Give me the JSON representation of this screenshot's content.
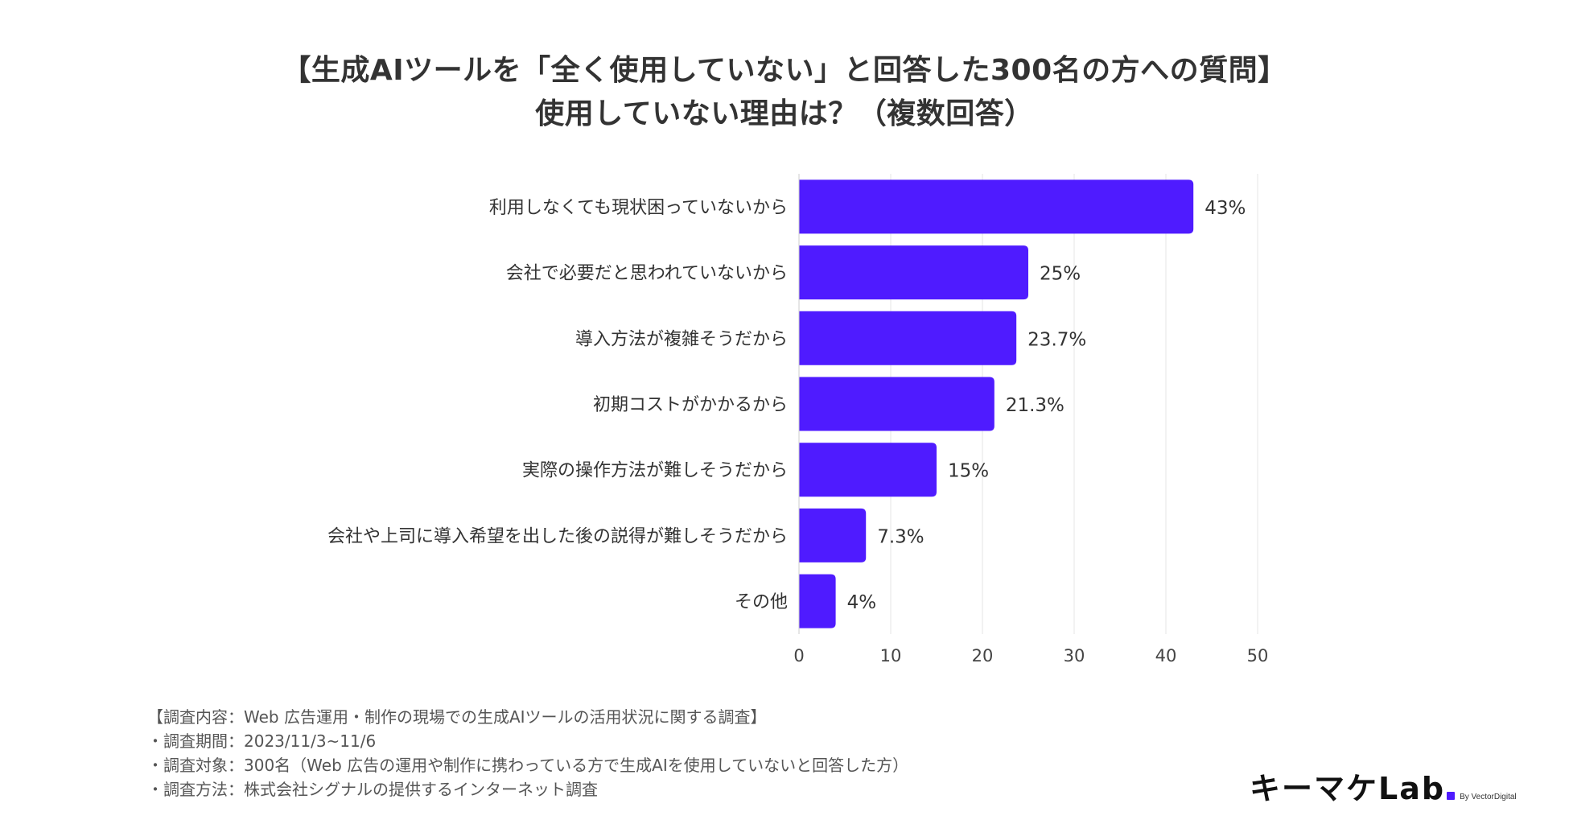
{
  "title": {
    "line1": "【生成AIツールを「全く使用していない」と回答した300名の方への質問】",
    "line2": "使用していない理由は？（複数回答）"
  },
  "chart_data": {
    "type": "bar",
    "orientation": "horizontal",
    "categories": [
      "利用しなくても現状困っていないから",
      "会社で必要だと思われていないから",
      "導入方法が複雑そうだから",
      "初期コストがかかるから",
      "実際の操作方法が難しそうだから",
      "会社や上司に導入希望を出した後の説得が難しそうだから",
      "その他"
    ],
    "values": [
      43,
      25,
      23.7,
      21.3,
      15,
      7.3,
      4
    ],
    "value_labels": [
      "43%",
      "25%",
      "23.7%",
      "21.3%",
      "15%",
      "7.3%",
      "4%"
    ],
    "xlim": [
      0,
      50
    ],
    "xticks": [
      0,
      10,
      20,
      30,
      40,
      50
    ],
    "xtick_labels": [
      "0",
      "10",
      "20",
      "30",
      "40",
      "50"
    ],
    "grid": true,
    "bar_color": "#4f1bff",
    "xlabel": "",
    "ylabel": ""
  },
  "notes": [
    "【調査内容：Web 広告運用・制作の現場での生成AIツールの活用状況に関する調査】",
    "・調査期間：2023/11/3~11/6",
    "・調査対象：300名（Web 広告の運用や制作に携わっている方で生成AIを使用していないと回答した方）",
    "・調査方法：株式会社シグナルの提供するインターネット調査"
  ],
  "logo": {
    "main": "キーマケLab",
    "sub": "By VectorDigital"
  }
}
